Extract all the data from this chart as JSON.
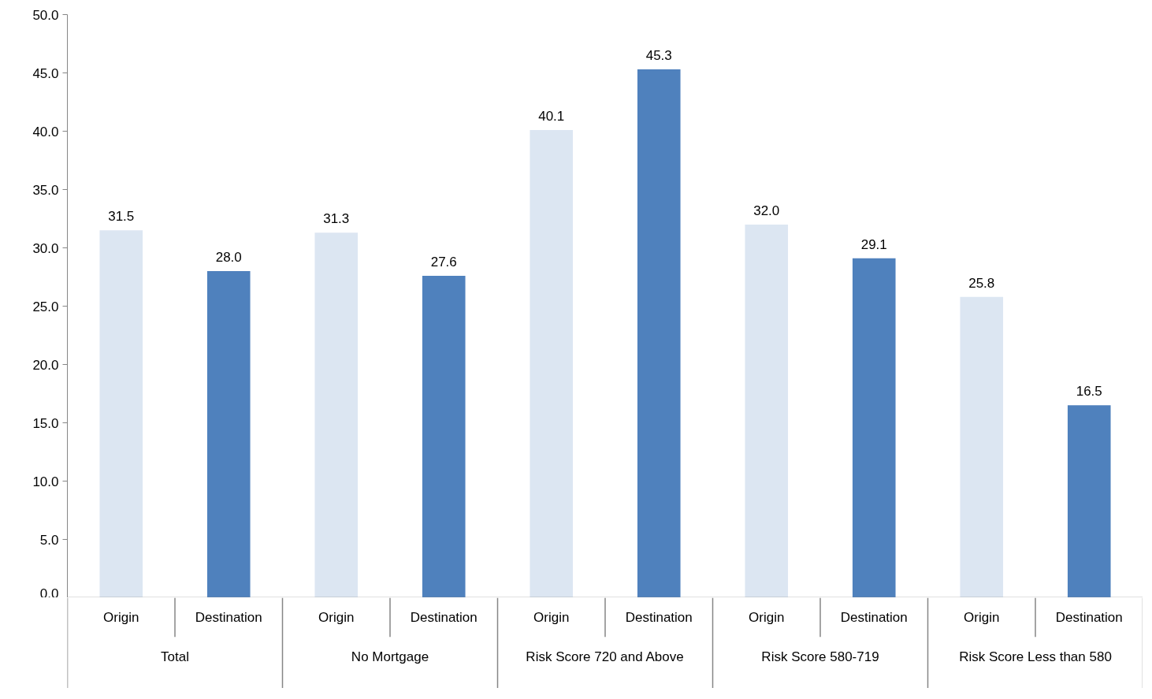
{
  "chart_data": {
    "type": "bar",
    "categories": [
      "Total",
      "No Mortgage",
      "Risk Score 720 and Above",
      "Risk Score 580-719",
      "Risk Score Less than 580"
    ],
    "series": [
      {
        "name": "Origin",
        "color": "#dce6f2",
        "values": [
          31.5,
          31.3,
          40.1,
          32.0,
          25.8
        ],
        "value_labels": [
          "31.5",
          "31.3",
          "40.1",
          "32.0",
          "25.8"
        ]
      },
      {
        "name": "Destination",
        "color": "#4f81bd",
        "values": [
          28.0,
          27.6,
          45.3,
          29.1,
          16.5
        ],
        "value_labels": [
          "28.0",
          "27.6",
          "45.3",
          "29.1",
          "16.5"
        ]
      }
    ],
    "ylim": [
      0,
      50
    ],
    "yticks": [
      {
        "value": 0,
        "label": "0.0"
      },
      {
        "value": 5,
        "label": "5.0"
      },
      {
        "value": 10,
        "label": "10.0"
      },
      {
        "value": 15,
        "label": "15.0"
      },
      {
        "value": 20,
        "label": "20.0"
      },
      {
        "value": 25,
        "label": "25.0"
      },
      {
        "value": 30,
        "label": "30.0"
      },
      {
        "value": 35,
        "label": "35.0"
      },
      {
        "value": 40,
        "label": "40.0"
      },
      {
        "value": 45,
        "label": "45.0"
      },
      {
        "value": 50,
        "label": "50.0"
      }
    ],
    "grid": false
  }
}
